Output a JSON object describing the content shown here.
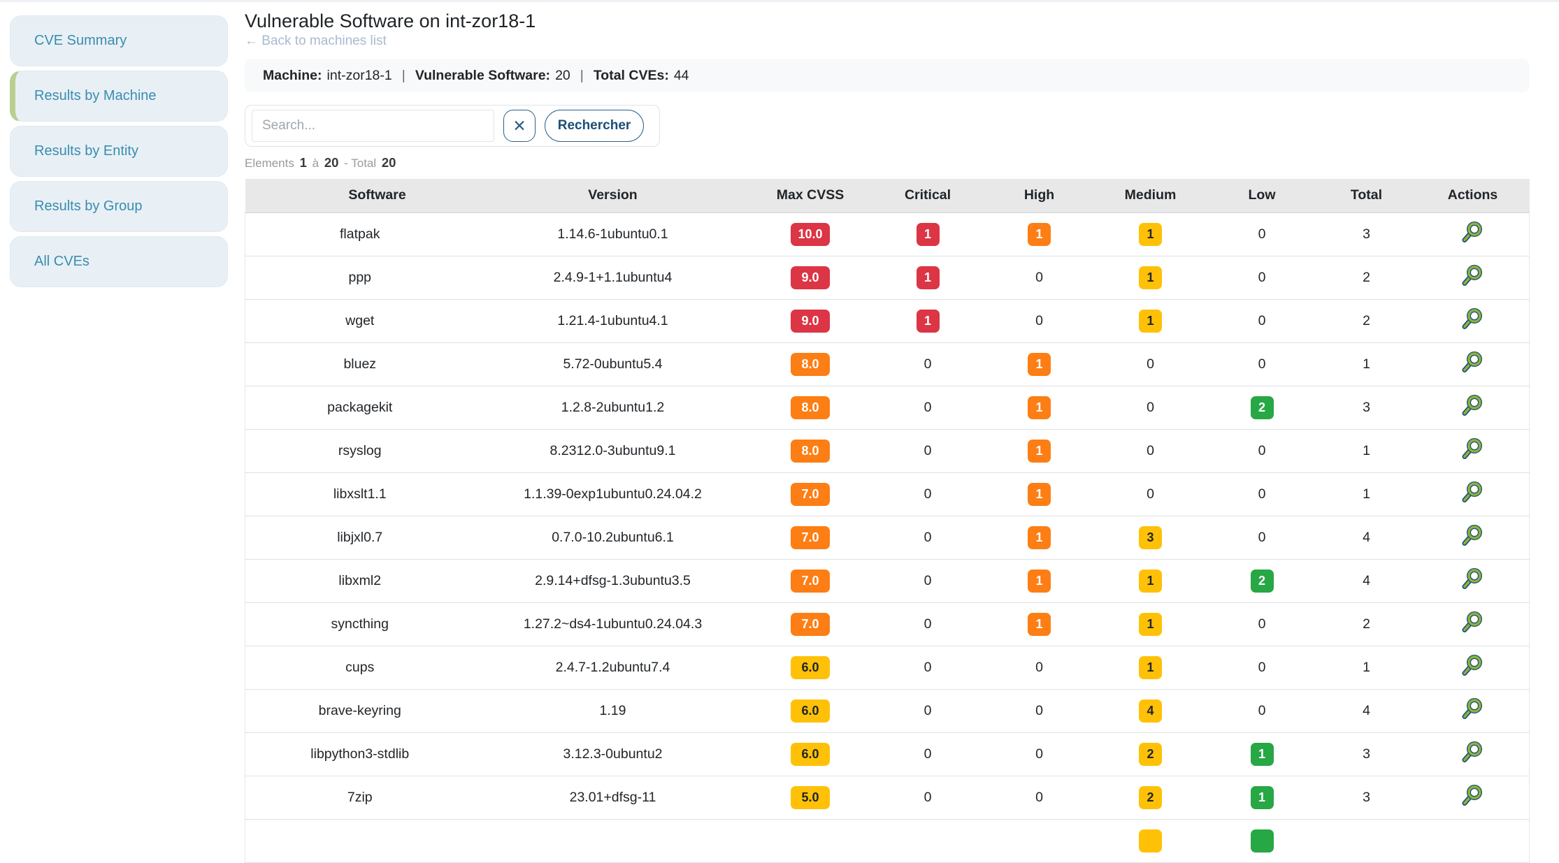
{
  "sidebar": {
    "items": [
      {
        "label": "CVE Summary",
        "active": false
      },
      {
        "label": "Results by Machine",
        "active": true
      },
      {
        "label": "Results by Entity",
        "active": false
      },
      {
        "label": "Results by Group",
        "active": false
      },
      {
        "label": "All CVEs",
        "active": false
      }
    ]
  },
  "header": {
    "title": "Vulnerable Software on int-zor18-1",
    "back_link": "← Back to machines list",
    "info": {
      "machine_label": "Machine:",
      "machine_value": "int-zor18-1",
      "separator": "|",
      "software_label": "Vulnerable Software:",
      "software_value": "20",
      "cves_label": "Total CVEs:",
      "cves_value": "44"
    }
  },
  "search": {
    "placeholder": "Search...",
    "clear_label": "✕",
    "submit_label": "Rechercher"
  },
  "pagination": {
    "label": "Elements",
    "from": "1",
    "conjunction": "à",
    "to": "20",
    "total_label": "- Total",
    "total": "20"
  },
  "table": {
    "columns": [
      "Software",
      "Version",
      "Max CVSS",
      "Critical",
      "High",
      "Medium",
      "Low",
      "Total",
      "Actions"
    ],
    "rows": [
      {
        "software": "flatpak",
        "version": "1.14.6-1ubuntu0.1",
        "max_cvss": "10.0",
        "critical": "1",
        "high": "1",
        "medium": "1",
        "low": "0",
        "total": "3"
      },
      {
        "software": "ppp",
        "version": "2.4.9-1+1.1ubuntu4",
        "max_cvss": "9.0",
        "critical": "1",
        "high": "0",
        "medium": "1",
        "low": "0",
        "total": "2"
      },
      {
        "software": "wget",
        "version": "1.21.4-1ubuntu4.1",
        "max_cvss": "9.0",
        "critical": "1",
        "high": "0",
        "medium": "1",
        "low": "0",
        "total": "2"
      },
      {
        "software": "bluez",
        "version": "5.72-0ubuntu5.4",
        "max_cvss": "8.0",
        "critical": "0",
        "high": "1",
        "medium": "0",
        "low": "0",
        "total": "1"
      },
      {
        "software": "packagekit",
        "version": "1.2.8-2ubuntu1.2",
        "max_cvss": "8.0",
        "critical": "0",
        "high": "1",
        "medium": "0",
        "low": "2",
        "total": "3"
      },
      {
        "software": "rsyslog",
        "version": "8.2312.0-3ubuntu9.1",
        "max_cvss": "8.0",
        "critical": "0",
        "high": "1",
        "medium": "0",
        "low": "0",
        "total": "1"
      },
      {
        "software": "libxslt1.1",
        "version": "1.1.39-0exp1ubuntu0.24.04.2",
        "max_cvss": "7.0",
        "critical": "0",
        "high": "1",
        "medium": "0",
        "low": "0",
        "total": "1"
      },
      {
        "software": "libjxl0.7",
        "version": "0.7.0-10.2ubuntu6.1",
        "max_cvss": "7.0",
        "critical": "0",
        "high": "1",
        "medium": "3",
        "low": "0",
        "total": "4"
      },
      {
        "software": "libxml2",
        "version": "2.9.14+dfsg-1.3ubuntu3.5",
        "max_cvss": "7.0",
        "critical": "0",
        "high": "1",
        "medium": "1",
        "low": "2",
        "total": "4"
      },
      {
        "software": "syncthing",
        "version": "1.27.2~ds4-1ubuntu0.24.04.3",
        "max_cvss": "7.0",
        "critical": "0",
        "high": "1",
        "medium": "1",
        "low": "0",
        "total": "2"
      },
      {
        "software": "cups",
        "version": "2.4.7-1.2ubuntu7.4",
        "max_cvss": "6.0",
        "critical": "0",
        "high": "0",
        "medium": "1",
        "low": "0",
        "total": "1"
      },
      {
        "software": "brave-keyring",
        "version": "1.19",
        "max_cvss": "6.0",
        "critical": "0",
        "high": "0",
        "medium": "4",
        "low": "0",
        "total": "4"
      },
      {
        "software": "libpython3-stdlib",
        "version": "3.12.3-0ubuntu2",
        "max_cvss": "6.0",
        "critical": "0",
        "high": "0",
        "medium": "2",
        "low": "1",
        "total": "3"
      },
      {
        "software": "7zip",
        "version": "23.01+dfsg-11",
        "max_cvss": "5.0",
        "critical": "0",
        "high": "0",
        "medium": "2",
        "low": "1",
        "total": "3"
      },
      {
        "software": "",
        "version": "",
        "max_cvss": null,
        "critical": null,
        "high": null,
        "medium": "",
        "low": "",
        "total": null,
        "partial": true
      }
    ]
  },
  "colors": {
    "accent_navy": "#2b6187",
    "sidebar_link": "#3a8cb0",
    "active_border_green": "#b8cf90",
    "critical_red": "#dc3545",
    "high_orange": "#fd7e14",
    "medium_yellow": "#ffc107",
    "low_green": "#28a745",
    "icon_green": "#8cb43a",
    "icon_navy": "#1f4e79"
  }
}
